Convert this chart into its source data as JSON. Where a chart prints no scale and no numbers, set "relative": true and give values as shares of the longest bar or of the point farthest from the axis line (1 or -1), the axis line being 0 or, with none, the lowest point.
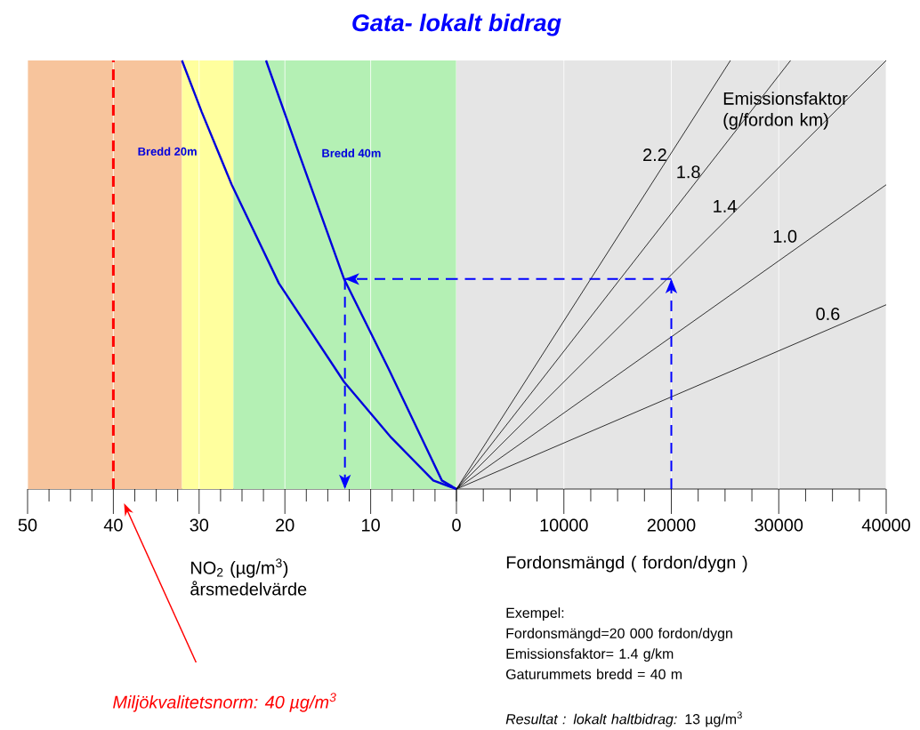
{
  "chart_data": [
    {
      "type": "line",
      "title": "Gata- lokalt bidrag",
      "xlabel": "NO$_{2}$ (µg/m$^{3}$) årsmedelvärde",
      "relative": true,
      "grid": "x",
      "xlim": [
        50,
        0
      ],
      "xticks": [
        0,
        {
          "value": 2.5,
          "label": null
        },
        {
          "value": 5,
          "label": null
        },
        {
          "value": 7.5,
          "label": null
        },
        10,
        {
          "value": 12.5,
          "label": null
        },
        {
          "value": 15,
          "label": null
        },
        {
          "value": 17.5,
          "label": null
        },
        20,
        {
          "value": 22.5,
          "label": null
        },
        {
          "value": 25,
          "label": null
        },
        {
          "value": 27.5,
          "label": null
        },
        30,
        {
          "value": 32.5,
          "label": null
        },
        {
          "value": 35,
          "label": null
        },
        {
          "value": 37.5,
          "label": null
        },
        40,
        {
          "value": 42.5,
          "label": null
        },
        {
          "value": 45,
          "label": null
        },
        {
          "value": 47.5,
          "label": null
        },
        50
      ],
      "bands": [
        {
          "axis": "x",
          "from": 50,
          "to": 32,
          "color": "#f7c49c"
        },
        {
          "axis": "x",
          "from": 32,
          "to": 26,
          "color": "#ffff9e"
        },
        {
          "axis": "x",
          "from": 26,
          "to": 0,
          "color": "#b4f0b4"
        }
      ],
      "ref_lines": [
        {
          "axis": "x",
          "value": 40,
          "label": "Miljökvalitetsnorm: 40 µg/m$^{3}$",
          "color": "#ff0000",
          "line_style": "dashed"
        }
      ],
      "series": [
        {
          "name": "Bredd 20m",
          "color": "#0000dd",
          "x": [
            32.0,
            29.7,
            26.2,
            20.7,
            13.1,
            7.6,
            2.7,
            0
          ],
          "values": [
            1,
            0.88,
            0.71,
            0.48,
            0.25,
            0.12,
            0.02,
            0
          ]
        },
        {
          "name": "Bredd 40m",
          "color": "#0000dd",
          "x": [
            22.2,
            18.3,
            13.1,
            7.9,
            1.7,
            0
          ],
          "values": [
            1,
            0.78,
            0.49,
            0.28,
            0.02,
            0
          ]
        },
        {
          "color": "#0000ff",
          "line_style": "dashed",
          "x": [
            0,
            13
          ],
          "values": [
            0.49,
            0.49
          ]
        },
        {
          "color": "#0000ff",
          "line_style": "dashed",
          "x": [
            13,
            13
          ],
          "values": [
            0.49,
            0
          ]
        }
      ]
    },
    {
      "type": "line",
      "xlabel": "Fordonsmängd ( fordon/dygn )",
      "relative": true,
      "grid": "x",
      "xlim": [
        0,
        40000
      ],
      "xticks": [
        {
          "value": 0,
          "label": null
        },
        {
          "value": 2500,
          "label": null
        },
        {
          "value": 5000,
          "label": null
        },
        {
          "value": 7500,
          "label": null
        },
        10000,
        {
          "value": 12500,
          "label": null
        },
        {
          "value": 15000,
          "label": null
        },
        {
          "value": 17500,
          "label": null
        },
        20000,
        {
          "value": 22500,
          "label": null
        },
        {
          "value": 25000,
          "label": null
        },
        {
          "value": 27500,
          "label": null
        },
        30000,
        {
          "value": 32500,
          "label": null
        },
        {
          "value": 35000,
          "label": null
        },
        {
          "value": 37500,
          "label": null
        },
        40000
      ],
      "annotations": [
        "Emissionsfaktor (g/fordon km)",
        "Exempel:",
        "Fordonsmängd=20 000 fordon/dygn",
        "Emissionsfaktor= 1.4 g/km",
        "Gaturummets bredd = 40 m",
        "*Resultat :  lokalt haltbidrag:* 13  µg/m$^{3}$"
      ],
      "series": [
        {
          "name": "2.2",
          "color": "#000000",
          "x": [
            0,
            25500
          ],
          "values": [
            0,
            1
          ]
        },
        {
          "name": "1.8",
          "color": "#000000",
          "x": [
            0,
            31100
          ],
          "values": [
            0,
            1
          ]
        },
        {
          "name": "1.4",
          "color": "#000000",
          "x": [
            0,
            40000
          ],
          "values": [
            0,
            1
          ]
        },
        {
          "name": "1.0",
          "color": "#000000",
          "x": [
            0,
            40000
          ],
          "values": [
            0,
            0.71
          ]
        },
        {
          "name": "0.6",
          "color": "#000000",
          "x": [
            0,
            40000
          ],
          "values": [
            0,
            0.43
          ]
        },
        {
          "color": "#0000ff",
          "line_style": "dashed",
          "x": [
            20000,
            20000
          ],
          "values": [
            0,
            0.49
          ]
        },
        {
          "color": "#0000ff",
          "line_style": "dashed",
          "x": [
            20000,
            0
          ],
          "values": [
            0.49,
            0.49
          ]
        }
      ]
    }
  ]
}
